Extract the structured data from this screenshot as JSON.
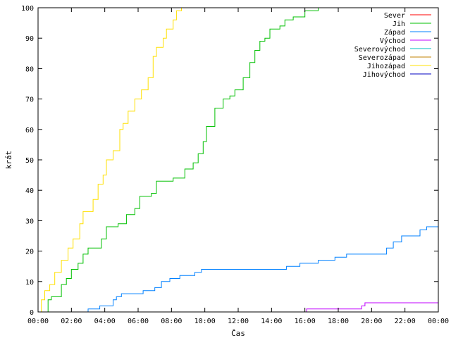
{
  "chart_data": {
    "type": "line",
    "title": "",
    "xlabel": "Čas",
    "ylabel": "krát",
    "xlim": [
      "00:00",
      "24:00"
    ],
    "ylim": [
      0,
      100
    ],
    "x_tick_labels": [
      "00:00",
      "02:00",
      "04:00",
      "06:00",
      "08:00",
      "10:00",
      "12:00",
      "14:00",
      "16:00",
      "18:00",
      "20:00",
      "22:00",
      "00:00"
    ],
    "y_tick_labels": [
      "0",
      "10",
      "20",
      "30",
      "40",
      "50",
      "60",
      "70",
      "80",
      "90",
      "100"
    ],
    "grid": false,
    "legend_position": "top-right",
    "series": [
      {
        "name": "Sever",
        "color": "#ff0000",
        "points": []
      },
      {
        "name": "Jih",
        "color": "#00c000",
        "points": [
          [
            "00:30",
            0
          ],
          [
            "00:36",
            4
          ],
          [
            "00:48",
            5
          ],
          [
            "01:24",
            9
          ],
          [
            "01:42",
            11
          ],
          [
            "02:00",
            14
          ],
          [
            "02:24",
            16
          ],
          [
            "02:42",
            19
          ],
          [
            "03:00",
            21
          ],
          [
            "03:48",
            24
          ],
          [
            "04:06",
            28
          ],
          [
            "04:48",
            29
          ],
          [
            "05:18",
            32
          ],
          [
            "05:48",
            34
          ],
          [
            "06:06",
            38
          ],
          [
            "06:48",
            39
          ],
          [
            "07:06",
            43
          ],
          [
            "08:06",
            44
          ],
          [
            "08:48",
            47
          ],
          [
            "09:18",
            49
          ],
          [
            "09:36",
            52
          ],
          [
            "09:54",
            56
          ],
          [
            "10:06",
            61
          ],
          [
            "10:36",
            67
          ],
          [
            "11:06",
            70
          ],
          [
            "11:30",
            71
          ],
          [
            "11:48",
            73
          ],
          [
            "12:18",
            77
          ],
          [
            "12:42",
            82
          ],
          [
            "13:00",
            86
          ],
          [
            "13:18",
            89
          ],
          [
            "13:36",
            90
          ],
          [
            "13:54",
            93
          ],
          [
            "14:30",
            94
          ],
          [
            "14:48",
            96
          ],
          [
            "15:18",
            97
          ],
          [
            "16:00",
            99
          ],
          [
            "16:48",
            100
          ],
          [
            "17:06",
            100
          ]
        ]
      },
      {
        "name": "Západ",
        "color": "#0080ff",
        "points": [
          [
            "02:48",
            0
          ],
          [
            "03:00",
            1
          ],
          [
            "03:42",
            2
          ],
          [
            "04:30",
            4
          ],
          [
            "04:42",
            5
          ],
          [
            "05:00",
            6
          ],
          [
            "06:18",
            7
          ],
          [
            "07:00",
            8
          ],
          [
            "07:24",
            10
          ],
          [
            "07:54",
            11
          ],
          [
            "08:30",
            12
          ],
          [
            "09:24",
            13
          ],
          [
            "09:48",
            14
          ],
          [
            "14:54",
            15
          ],
          [
            "15:42",
            16
          ],
          [
            "16:48",
            17
          ],
          [
            "17:48",
            18
          ],
          [
            "18:30",
            19
          ],
          [
            "20:54",
            21
          ],
          [
            "21:18",
            23
          ],
          [
            "21:48",
            25
          ],
          [
            "22:54",
            27
          ],
          [
            "23:18",
            28
          ],
          [
            "24:00",
            28
          ]
        ]
      },
      {
        "name": "Východ",
        "color": "#c000ff",
        "points": [
          [
            "16:00",
            0
          ],
          [
            "16:06",
            1
          ],
          [
            "19:24",
            2
          ],
          [
            "19:36",
            3
          ],
          [
            "24:00",
            3
          ]
        ]
      },
      {
        "name": "Severovýchod",
        "color": "#00c0c0",
        "points": []
      },
      {
        "name": "Severozápad",
        "color": "#c08000",
        "points": []
      },
      {
        "name": "Jihozápad",
        "color": "#ffe000",
        "points": [
          [
            "00:00",
            0
          ],
          [
            "00:12",
            4
          ],
          [
            "00:24",
            7
          ],
          [
            "00:42",
            9
          ],
          [
            "01:00",
            13
          ],
          [
            "01:24",
            17
          ],
          [
            "01:48",
            21
          ],
          [
            "02:06",
            24
          ],
          [
            "02:30",
            29
          ],
          [
            "02:42",
            33
          ],
          [
            "03:18",
            37
          ],
          [
            "03:36",
            42
          ],
          [
            "03:54",
            45
          ],
          [
            "04:06",
            50
          ],
          [
            "04:30",
            53
          ],
          [
            "04:54",
            60
          ],
          [
            "05:06",
            62
          ],
          [
            "05:24",
            66
          ],
          [
            "05:48",
            70
          ],
          [
            "06:12",
            73
          ],
          [
            "06:36",
            77
          ],
          [
            "06:54",
            84
          ],
          [
            "07:06",
            87
          ],
          [
            "07:30",
            90
          ],
          [
            "07:42",
            93
          ],
          [
            "08:06",
            96
          ],
          [
            "08:18",
            99
          ],
          [
            "08:36",
            100
          ],
          [
            "08:42",
            100
          ]
        ]
      },
      {
        "name": "Jihovýchod",
        "color": "#0000c0",
        "points": []
      }
    ]
  }
}
